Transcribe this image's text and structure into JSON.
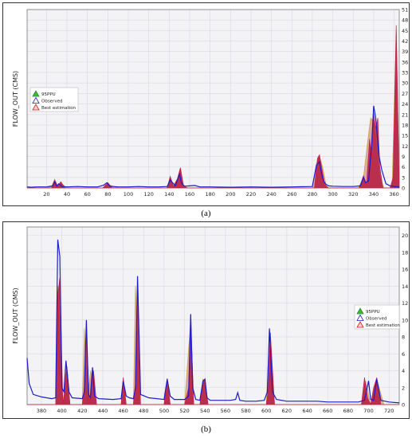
{
  "chart_data": [
    {
      "type": "area",
      "panel_label": "(a)",
      "ylabel": "FLOW_OUT (CMS)",
      "xlim": [
        1,
        365
      ],
      "ylim": [
        0,
        51
      ],
      "xticks": [
        20,
        40,
        60,
        80,
        100,
        120,
        140,
        160,
        180,
        200,
        220,
        240,
        260,
        280,
        300,
        320,
        340,
        360
      ],
      "yticks": [
        0,
        3,
        6,
        9,
        12,
        15,
        18,
        21,
        24,
        27,
        30,
        33,
        36,
        39,
        42,
        45,
        48,
        51
      ],
      "grid": true,
      "legend_position": "left-middle",
      "series": [
        {
          "name": "95PPU",
          "color": "#3cb93c",
          "x": [
            1,
            20,
            25,
            28,
            31,
            34,
            40,
            75,
            80,
            90,
            138,
            141,
            144,
            148,
            151,
            154,
            160,
            175,
            280,
            284,
            287,
            290,
            294,
            300,
            325,
            330,
            334,
            337,
            340,
            343,
            346,
            350,
            355,
            358,
            362,
            365
          ],
          "y": [
            0,
            0,
            0.5,
            2.5,
            0.5,
            1.5,
            0,
            0,
            1,
            0,
            0,
            3,
            0.5,
            2,
            5.5,
            0,
            0,
            0,
            0,
            7,
            9,
            6,
            0,
            0,
            0,
            3,
            13,
            20,
            19,
            11,
            3,
            0,
            0,
            0,
            45,
            0
          ]
        },
        {
          "name": "Observed",
          "color": "#1c1ccc",
          "x": [
            1,
            5,
            10,
            20,
            26,
            28,
            30,
            32,
            35,
            40,
            50,
            60,
            70,
            76,
            79,
            82,
            90,
            100,
            110,
            120,
            130,
            138,
            141,
            143,
            146,
            148,
            150,
            152,
            155,
            160,
            165,
            170,
            180,
            200,
            220,
            240,
            260,
            280,
            284,
            287,
            289,
            291,
            293,
            296,
            300,
            310,
            320,
            327,
            330,
            332,
            335,
            338,
            340,
            342,
            345,
            348,
            352,
            356,
            360,
            365
          ],
          "y": [
            0.3,
            0.2,
            0.3,
            0.3,
            0.6,
            1.8,
            0.5,
            1.2,
            0.4,
            0.3,
            0.4,
            0.3,
            0.3,
            0.8,
            1.5,
            0.5,
            0.3,
            0.3,
            0.4,
            0.3,
            0.3,
            0.4,
            2.3,
            1.6,
            0.6,
            2.2,
            3.9,
            1.4,
            0.5,
            0.6,
            0.7,
            0.3,
            0.3,
            0.2,
            0.3,
            0.2,
            0.3,
            0.4,
            6.5,
            7.5,
            4.2,
            2.0,
            1.1,
            0.6,
            0.5,
            0.4,
            0.4,
            0.6,
            3.0,
            1.5,
            2.0,
            12.5,
            23.5,
            20.0,
            9.5,
            5.0,
            1.2,
            0.6,
            0.4,
            0.3
          ]
        },
        {
          "name": "Best estimation",
          "color": "#cc1c1c",
          "x": [
            1,
            25,
            28,
            31,
            34,
            38,
            75,
            80,
            84,
            138,
            141,
            144,
            148,
            151,
            154,
            158,
            282,
            285,
            287,
            289,
            292,
            296,
            326,
            330,
            333,
            336,
            338,
            340,
            342,
            344,
            346,
            349,
            356,
            359,
            362,
            365
          ],
          "y": [
            0,
            0,
            2.2,
            0.4,
            1.8,
            0,
            0,
            1.5,
            0,
            0,
            3.3,
            0.5,
            2.6,
            5.8,
            0.6,
            0,
            0,
            8.5,
            9.5,
            6.0,
            1.0,
            0,
            0,
            3.5,
            1.0,
            14.0,
            9.0,
            21.5,
            17.0,
            20.0,
            6.0,
            0,
            0,
            3.0,
            46.5,
            0
          ]
        }
      ]
    },
    {
      "type": "area",
      "panel_label": "(b)",
      "ylabel": "FLOW_OUT (CMS)",
      "xlim": [
        366,
        730
      ],
      "ylim": [
        0,
        21
      ],
      "xticks": [
        380,
        400,
        420,
        440,
        460,
        480,
        500,
        520,
        540,
        560,
        580,
        600,
        620,
        640,
        660,
        680,
        700,
        720
      ],
      "yticks": [
        0,
        2,
        4,
        6,
        8,
        10,
        12,
        14,
        16,
        18,
        20
      ],
      "grid": true,
      "legend_position": "right-middle",
      "series": [
        {
          "name": "95PPU",
          "color": "#3cb93c",
          "x": [
            366,
            380,
            394,
            396,
            399,
            402,
            404,
            407,
            420,
            422,
            425,
            428,
            430,
            433,
            458,
            460,
            463,
            470,
            472,
            476,
            500,
            503,
            506,
            520,
            526,
            529,
            535,
            538,
            540,
            543,
            600,
            603,
            608,
            690,
            693,
            697,
            702,
            705,
            708,
            715,
            730
          ],
          "y": [
            0,
            0,
            0,
            14,
            3,
            0,
            5,
            0,
            0,
            9,
            0,
            4,
            3,
            0,
            0,
            3,
            0,
            0,
            14,
            0,
            0,
            3,
            0,
            0,
            10,
            0,
            0,
            3,
            2.5,
            0,
            0,
            8.5,
            0,
            0,
            0,
            2.8,
            0,
            2,
            3,
            0,
            0
          ]
        },
        {
          "name": "Observed",
          "color": "#1c1ccc",
          "x": [
            366,
            368,
            372,
            380,
            390,
            394,
            396,
            398,
            400,
            402,
            404,
            407,
            410,
            420,
            422,
            424,
            426,
            428,
            430,
            432,
            436,
            450,
            458,
            460,
            463,
            466,
            470,
            472,
            474,
            477,
            485,
            500,
            503,
            506,
            510,
            520,
            524,
            526,
            528,
            531,
            535,
            538,
            540,
            542,
            545,
            555,
            565,
            570,
            572,
            574,
            580,
            590,
            598,
            601,
            603,
            606,
            610,
            620,
            630,
            640,
            650,
            660,
            670,
            680,
            690,
            696,
            700,
            702,
            705,
            708,
            712,
            720,
            730
          ],
          "y": [
            5.5,
            2.5,
            1.2,
            0.9,
            0.7,
            0.8,
            19.5,
            17.5,
            2.0,
            1.5,
            5.2,
            1.5,
            0.8,
            0.7,
            1.5,
            10.0,
            1.2,
            0.8,
            4.4,
            1.0,
            0.7,
            0.6,
            0.7,
            2.8,
            1.0,
            0.8,
            0.7,
            2.0,
            15.2,
            1.2,
            0.8,
            0.6,
            3.0,
            1.0,
            0.6,
            0.6,
            1.0,
            10.7,
            2.0,
            0.6,
            0.5,
            2.8,
            3.0,
            0.8,
            0.5,
            0.5,
            0.5,
            0.6,
            1.4,
            0.5,
            0.4,
            0.4,
            0.5,
            1.5,
            9.0,
            1.5,
            0.6,
            0.4,
            0.4,
            0.4,
            0.4,
            0.3,
            0.3,
            0.3,
            0.3,
            0.5,
            2.8,
            0.6,
            0.5,
            3.0,
            0.5,
            0.3,
            0.2
          ]
        },
        {
          "name": "Best estimation",
          "color": "#cc1c1c",
          "x": [
            366,
            394,
            396,
            398,
            401,
            403,
            405,
            408,
            420,
            422,
            424,
            427,
            429,
            431,
            434,
            458,
            460,
            463,
            470,
            472,
            474,
            477,
            500,
            503,
            506,
            520,
            524,
            526,
            529,
            535,
            538,
            540,
            543,
            600,
            602,
            604,
            608,
            693,
            696,
            699,
            702,
            705,
            708,
            712,
            730
          ],
          "y": [
            0,
            0,
            13.0,
            15.0,
            0,
            2.0,
            4.5,
            0,
            0,
            2.0,
            8.5,
            0,
            3.2,
            4.0,
            0,
            0,
            3.2,
            0,
            0,
            2.5,
            14.0,
            0,
            0,
            3.1,
            0,
            0,
            2.0,
            10.2,
            0,
            0,
            2.5,
            3.0,
            0,
            0,
            2.0,
            8.5,
            0,
            0,
            3.2,
            0.8,
            0,
            2.0,
            3.2,
            0,
            0
          ]
        }
      ]
    }
  ]
}
